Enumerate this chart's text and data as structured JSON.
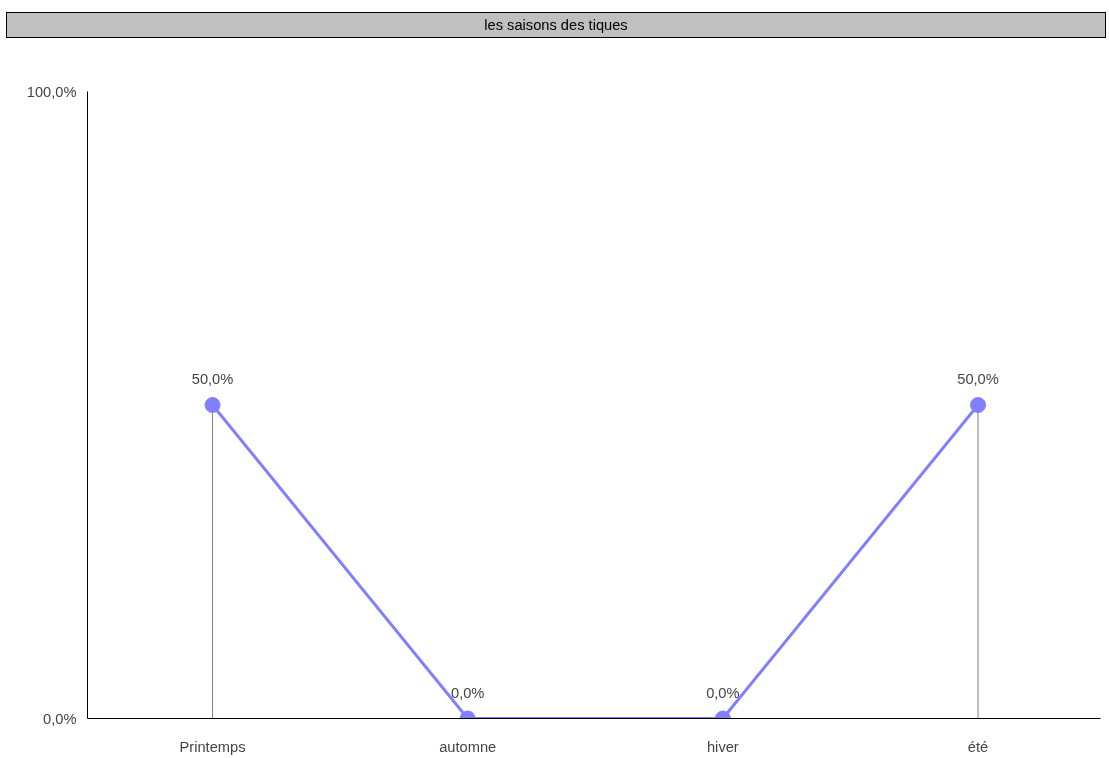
{
  "chart_data": {
    "type": "line",
    "title": "les saisons des tiques",
    "categories": [
      "Printemps",
      "automne",
      "hiver",
      "été"
    ],
    "series": [
      {
        "color": "#8080ff",
        "values": [
          50,
          0,
          0,
          50
        ]
      }
    ],
    "value_labels": [
      "50,0%",
      "0,0%",
      "0,0%",
      "50,0%"
    ],
    "ylim": [
      0,
      100
    ],
    "yticks": [
      {
        "value": 0,
        "label": "0,0%"
      },
      {
        "value": 100,
        "label": "100,0%"
      }
    ],
    "grid": false,
    "marker": "circle",
    "line_style": "solid"
  }
}
